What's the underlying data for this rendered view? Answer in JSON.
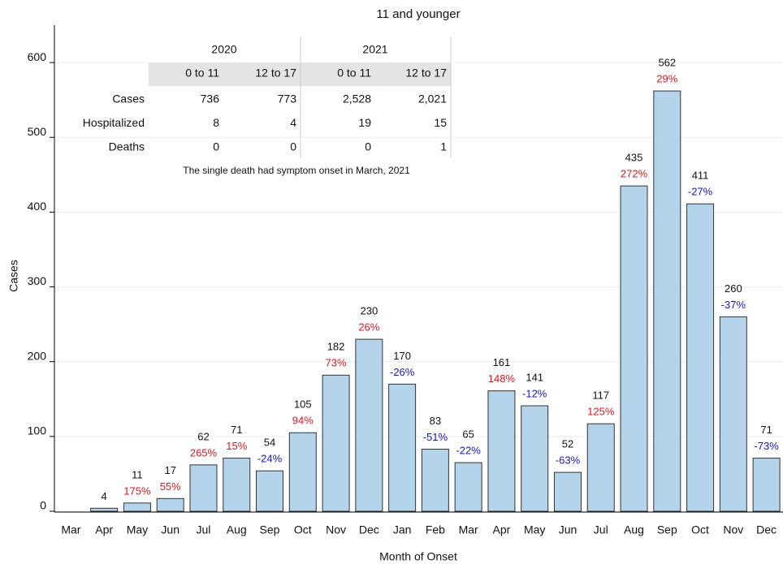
{
  "chart_data": {
    "type": "bar",
    "title": "11 and younger",
    "x_label": "Month of Onset",
    "y_label": "Cases",
    "categories": [
      "Mar",
      "Apr",
      "May",
      "Jun",
      "Jul",
      "Aug",
      "Sep",
      "Oct",
      "Nov",
      "Dec",
      "Jan",
      "Feb",
      "Mar",
      "Apr",
      "May",
      "Jun",
      "Jul",
      "Aug",
      "Sep",
      "Oct",
      "Nov",
      "Dec"
    ],
    "values": [
      null,
      4,
      11,
      17,
      62,
      71,
      54,
      105,
      182,
      230,
      170,
      83,
      65,
      161,
      141,
      52,
      117,
      435,
      562,
      411,
      260,
      71
    ],
    "color": "#b3d4ea",
    "percent_change": {
      "values": [
        null,
        null,
        175,
        55,
        265,
        15,
        -24,
        94,
        73,
        26,
        -26,
        -51,
        -22,
        148,
        -12,
        -63,
        125,
        272,
        29,
        -27,
        -37,
        -73
      ],
      "value_labels": [
        null,
        null,
        "175%",
        "55%",
        "265%",
        "15%",
        "-24%",
        "94%",
        "73%",
        "26%",
        "-26%",
        "-51%",
        "-22%",
        "148%",
        "-12%",
        "-63%",
        "125%",
        "272%",
        "29%",
        "-27%",
        "-37%",
        "-73%"
      ],
      "positive_color": "#e8141c",
      "negative_color": "#1414e0"
    },
    "ylim": [
      0,
      650
    ],
    "yticks": [
      0,
      100,
      200,
      300,
      400,
      500,
      600
    ],
    "grid": true,
    "inset_table": {
      "years": [
        "2020",
        "2021"
      ],
      "groups": [
        "0 to 11",
        "12 to 17",
        "0 to 11",
        "12 to 17"
      ],
      "rows": [
        {
          "label": "Cases",
          "values": [
            "736",
            "773",
            "2,528",
            "2,021"
          ]
        },
        {
          "label": "Hospitalized",
          "values": [
            "8",
            "4",
            "19",
            "15"
          ]
        },
        {
          "label": "Deaths",
          "values": [
            "0",
            "0",
            "0",
            "1"
          ]
        }
      ],
      "note": "The single death had symptom onset in March, 2021"
    }
  }
}
